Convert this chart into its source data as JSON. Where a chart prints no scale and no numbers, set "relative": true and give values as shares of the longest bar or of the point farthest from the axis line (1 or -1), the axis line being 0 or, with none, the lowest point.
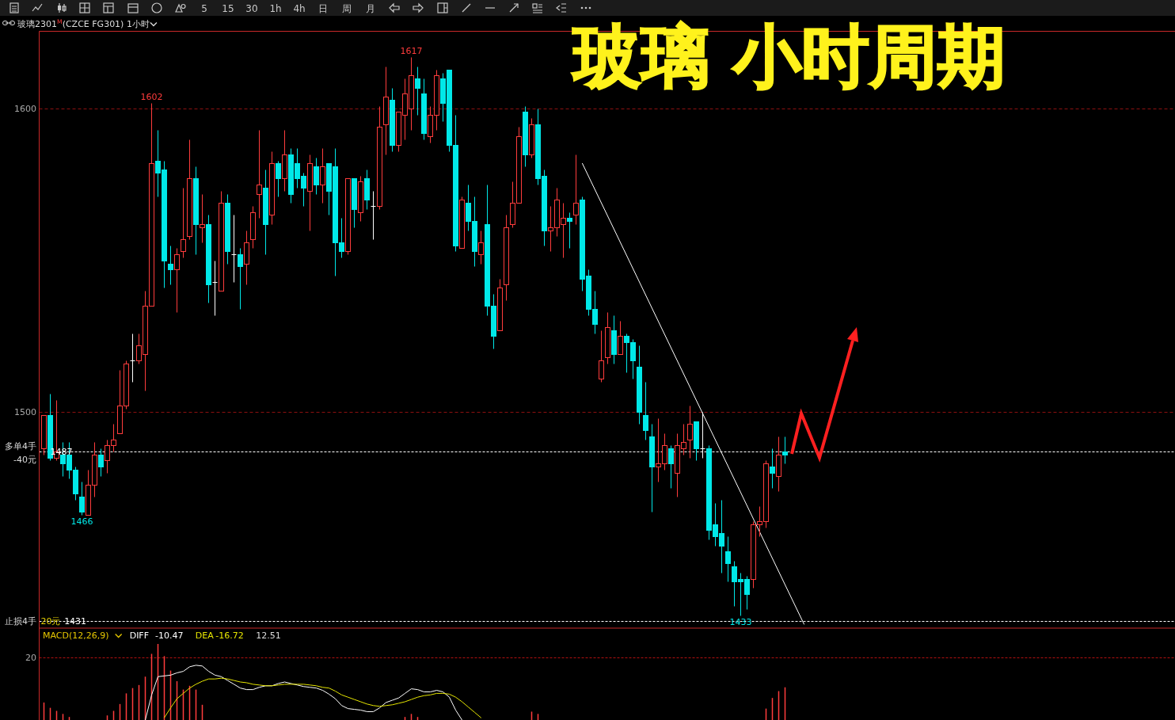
{
  "chart_data": [
    {
      "type": "other",
      "annotations": [
        "5",
        "15",
        "30",
        "1h",
        "4h",
        "日",
        "周",
        "月"
      ]
    },
    {
      "type": "candlestick",
      "title": "玻璃 小时周期",
      "subtitle": "玻璃2301$^{M}$(CZCE FG301) 1小时",
      "categories": [
        null,
        null,
        null,
        null,
        null,
        null,
        null,
        null,
        null,
        null,
        null,
        null,
        null,
        null,
        null,
        null,
        null,
        null,
        null,
        null,
        null,
        null,
        null,
        null,
        null,
        null,
        null,
        null,
        null,
        null,
        null,
        null,
        null,
        null,
        null,
        null,
        null,
        null,
        null,
        null,
        null,
        null,
        null,
        null,
        null,
        null,
        null,
        null,
        null,
        null,
        null,
        null,
        null,
        null,
        null,
        null,
        null,
        null,
        null,
        null,
        null,
        null,
        null,
        null,
        null,
        null,
        null,
        null,
        null,
        null,
        null,
        null,
        null,
        null,
        null,
        null,
        null,
        null,
        null,
        null,
        null,
        null,
        null,
        null,
        null,
        null,
        null,
        null,
        null,
        null,
        null,
        null,
        null,
        null,
        null,
        null,
        null,
        null,
        null,
        null,
        null,
        null,
        null,
        null,
        null,
        null,
        null,
        null,
        null,
        null,
        null,
        null,
        null,
        null,
        null,
        null,
        null,
        null,
        null,
        null,
        null,
        null,
        null,
        null,
        null,
        null,
        null,
        null,
        null,
        null,
        null,
        null,
        null,
        null,
        null,
        null,
        null,
        null,
        null,
        null,
        null,
        null,
        null,
        null,
        null,
        null,
        null,
        null,
        null,
        null,
        null,
        null,
        null,
        null,
        null,
        null,
        null,
        null,
        null,
        null,
        null,
        null,
        null,
        null,
        null,
        null,
        null,
        null,
        null,
        null,
        null,
        null,
        null,
        null,
        null,
        null,
        null,
        null,
        null
      ],
      "ohlc": [
        [
          1488,
          1499,
          1486,
          1499
        ],
        [
          1499,
          1506,
          1484,
          1485
        ],
        [
          1485,
          1504,
          1484,
          1487
        ],
        [
          1486,
          1490,
          1479,
          1483
        ],
        [
          1486,
          1490,
          1478,
          1481
        ],
        [
          1481,
          1482,
          1471,
          1473
        ],
        [
          1472,
          1477,
          1466,
          1467
        ],
        [
          1466,
          1481,
          1466,
          1476
        ],
        [
          1476,
          1490,
          1472,
          1486
        ],
        [
          1486,
          1488,
          1479,
          1482
        ],
        [
          1484,
          1491,
          1480,
          1489
        ],
        [
          1489,
          1496,
          1487,
          1491
        ],
        [
          1493,
          1514,
          1493,
          1502
        ],
        [
          1502,
          1517,
          1501,
          1516
        ],
        [
          1517,
          1526,
          1510,
          1517
        ],
        [
          1517,
          1526,
          1516,
          1522
        ],
        [
          1519,
          1540,
          1507,
          1535
        ],
        [
          1535,
          1602,
          1535,
          1582
        ],
        [
          1583,
          1593,
          1571,
          1579
        ],
        [
          1580,
          1583,
          1541,
          1550
        ],
        [
          1549,
          1555,
          1542,
          1547
        ],
        [
          1547,
          1554,
          1533,
          1552
        ],
        [
          1553,
          1574,
          1551,
          1557
        ],
        [
          1558,
          1590,
          1557,
          1577
        ],
        [
          1577,
          1581,
          1552,
          1562
        ],
        [
          1561,
          1572,
          1556,
          1562
        ],
        [
          1562,
          1565,
          1536,
          1542
        ],
        [
          1543,
          1550,
          1532,
          1543
        ],
        [
          1540,
          1573,
          1540,
          1569
        ],
        [
          1569,
          1572,
          1549,
          1553
        ],
        [
          1552,
          1565,
          1543,
          1552
        ],
        [
          1552,
          1554,
          1534,
          1548
        ],
        [
          1549,
          1560,
          1542,
          1556
        ],
        [
          1557,
          1568,
          1554,
          1566
        ],
        [
          1572,
          1593,
          1564,
          1575
        ],
        [
          1574,
          1580,
          1552,
          1562
        ],
        [
          1565,
          1586,
          1562,
          1582
        ],
        [
          1582,
          1583,
          1571,
          1577
        ],
        [
          1577,
          1593,
          1573,
          1585
        ],
        [
          1585,
          1587,
          1569,
          1572
        ],
        [
          1582,
          1587,
          1574,
          1577
        ],
        [
          1578,
          1579,
          1568,
          1574
        ],
        [
          1573,
          1585,
          1560,
          1582
        ],
        [
          1581,
          1584,
          1572,
          1575
        ],
        [
          1575,
          1587,
          1569,
          1581
        ],
        [
          1582,
          1582,
          1565,
          1573
        ],
        [
          1581,
          1587,
          1545,
          1556
        ],
        [
          1556,
          1564,
          1551,
          1553
        ],
        [
          1553,
          1577,
          1552,
          1577
        ],
        [
          1577,
          1577,
          1561,
          1567
        ],
        [
          1566,
          1578,
          1563,
          1576
        ],
        [
          1577,
          1580,
          1567,
          1570
        ],
        [
          1568,
          1573,
          1557,
          1568
        ],
        [
          1568,
          1601,
          1567,
          1594
        ],
        [
          1595,
          1614,
          1585,
          1604
        ],
        [
          1603,
          1607,
          1586,
          1588
        ],
        [
          1588,
          1599,
          1586,
          1599
        ],
        [
          1598,
          1610,
          1590,
          1605
        ],
        [
          1600,
          1617,
          1593,
          1611
        ],
        [
          1610,
          1614,
          1598,
          1607
        ],
        [
          1605,
          1610,
          1590,
          1592
        ],
        [
          1591,
          1601,
          1589,
          1598
        ],
        [
          1598,
          1613,
          1593,
          1611
        ],
        [
          1610,
          1612,
          1596,
          1602
        ],
        [
          1613,
          1613,
          1586,
          1588
        ],
        [
          1588,
          1598,
          1553,
          1555
        ],
        [
          1554,
          1571,
          1554,
          1570
        ],
        [
          1569,
          1575,
          1560,
          1563
        ],
        [
          1563,
          1571,
          1548,
          1553
        ],
        [
          1552,
          1560,
          1549,
          1556
        ],
        [
          1562,
          1575,
          1532,
          1535
        ],
        [
          1535,
          1539,
          1521,
          1525
        ],
        [
          1527,
          1544,
          1527,
          1541
        ],
        [
          1542,
          1565,
          1537,
          1561
        ],
        [
          1562,
          1576,
          1561,
          1569
        ],
        [
          1569,
          1594,
          1569,
          1591
        ],
        [
          1599,
          1601,
          1581,
          1585
        ],
        [
          1585,
          1597,
          1584,
          1595
        ],
        [
          1595,
          1600,
          1575,
          1577
        ],
        [
          1578,
          1580,
          1555,
          1560
        ],
        [
          1560,
          1568,
          1553,
          1561
        ],
        [
          1561,
          1574,
          1558,
          1570
        ],
        [
          1562,
          1569,
          1551,
          1564
        ],
        [
          1564,
          1566,
          1554,
          1563
        ],
        [
          1565,
          1585,
          1562,
          1569
        ],
        [
          1570,
          1571,
          1540,
          1544
        ],
        [
          1545,
          1547,
          1532,
          1534
        ],
        [
          1534,
          1540,
          1526,
          1529
        ],
        [
          1511,
          1527,
          1510,
          1517
        ],
        [
          1518,
          1533,
          1516,
          1528
        ],
        [
          1527,
          1532,
          1516,
          1519
        ],
        [
          1519,
          1530,
          1519,
          1525
        ],
        [
          1525,
          1526,
          1513,
          1523
        ],
        [
          1523,
          1524,
          1511,
          1517
        ],
        [
          1515,
          1522,
          1496,
          1500
        ],
        [
          1499,
          1510,
          1491,
          1494
        ],
        [
          1492,
          1496,
          1467,
          1482
        ],
        [
          1482,
          1498,
          1477,
          1483
        ],
        [
          1483,
          1493,
          1481,
          1489
        ],
        [
          1488,
          1489,
          1475,
          1483
        ],
        [
          1480,
          1493,
          1472,
          1489
        ],
        [
          1488,
          1496,
          1486,
          1490
        ],
        [
          1491,
          1502,
          1485,
          1496
        ],
        [
          1497,
          1497,
          1484,
          1488
        ],
        [
          1488,
          1500,
          1485,
          1488
        ],
        [
          1488,
          1489,
          1458,
          1461
        ],
        [
          1463,
          1470,
          1456,
          1459
        ],
        [
          1460,
          1471,
          1447,
          1456
        ],
        [
          1454,
          1459,
          1444,
          1450
        ],
        [
          1449,
          1451,
          1436,
          1444
        ],
        [
          1445,
          1447,
          1433,
          1444
        ],
        [
          1445,
          1446,
          1435,
          1440
        ],
        [
          1445,
          1464,
          1442,
          1463
        ],
        [
          1463,
          1469,
          1459,
          1464
        ],
        [
          1464,
          1484,
          1462,
          1483
        ],
        [
          1482,
          1488,
          1475,
          1480
        ],
        [
          1479,
          1492,
          1474,
          1486
        ],
        [
          1487,
          1492,
          1483,
          1486
        ],
        null,
        null,
        null,
        null,
        null,
        null,
        null,
        null,
        null,
        null,
        null,
        null,
        null,
        null,
        null,
        null,
        null,
        null,
        null,
        null,
        null,
        null,
        null,
        null,
        null,
        null,
        null,
        null,
        null,
        null,
        null,
        null,
        null,
        null,
        null,
        null,
        null,
        null,
        null,
        null,
        null,
        null,
        null,
        null,
        null,
        null,
        null,
        null,
        null,
        null,
        null,
        null,
        null,
        null,
        null,
        null,
        null,
        null,
        null,
        null,
        null
      ],
      "colors": [
        "#ff3c3c",
        "#00e8e8",
        "#ff3c3c",
        "#00e8e8",
        "#00e8e8",
        "#00e8e8",
        "#00e8e8",
        "#ff3c3c",
        "#ff3c3c",
        "#00e8e8",
        "#ff3c3c",
        "#ff3c3c",
        "#ff3c3c",
        "#ff3c3c",
        "#ffffff",
        "#ff3c3c",
        "#ff3c3c",
        "#ff3c3c",
        "#00e8e8",
        "#00e8e8",
        "#00e8e8",
        "#ff3c3c",
        "#ff3c3c",
        "#ff3c3c",
        "#00e8e8",
        "#ff3c3c",
        "#00e8e8",
        "#ffffff",
        "#ff3c3c",
        "#00e8e8",
        "#ffffff",
        "#00e8e8",
        "#ff3c3c",
        "#ff3c3c",
        "#ff3c3c",
        "#00e8e8",
        "#ff3c3c",
        "#00e8e8",
        "#ff3c3c",
        "#00e8e8",
        "#00e8e8",
        "#00e8e8",
        "#ff3c3c",
        "#00e8e8",
        "#ff3c3c",
        "#00e8e8",
        "#00e8e8",
        "#00e8e8",
        "#ff3c3c",
        "#00e8e8",
        "#ff3c3c",
        "#00e8e8",
        "#ffffff",
        "#ff3c3c",
        "#ff3c3c",
        "#00e8e8",
        "#ff3c3c",
        "#ff3c3c",
        "#ff3c3c",
        "#00e8e8",
        "#00e8e8",
        "#ff3c3c",
        "#ff3c3c",
        "#00e8e8",
        "#00e8e8",
        "#00e8e8",
        "#ff3c3c",
        "#00e8e8",
        "#00e8e8",
        "#ff3c3c",
        "#00e8e8",
        "#00e8e8",
        "#ff3c3c",
        "#ff3c3c",
        "#ff3c3c",
        "#ff3c3c",
        "#00e8e8",
        "#ff3c3c",
        "#00e8e8",
        "#00e8e8",
        "#ff3c3c",
        "#ff3c3c",
        "#ff3c3c",
        "#00e8e8",
        "#ff3c3c",
        "#00e8e8",
        "#00e8e8",
        "#00e8e8",
        "#ff3c3c",
        "#ff3c3c",
        "#00e8e8",
        "#ff3c3c",
        "#00e8e8",
        "#00e8e8",
        "#00e8e8",
        "#00e8e8",
        "#00e8e8",
        "#ff3c3c",
        "#ff3c3c",
        "#00e8e8",
        "#ff3c3c",
        "#ff3c3c",
        "#ff3c3c",
        "#00e8e8",
        "#ffffff",
        "#00e8e8",
        "#00e8e8",
        "#00e8e8",
        "#00e8e8",
        "#00e8e8",
        "#00e8e8",
        "#00e8e8",
        "#ff3c3c",
        "#ff3c3c",
        "#ff3c3c",
        "#00e8e8",
        "#ff3c3c",
        "#00e8e8",
        null,
        null,
        null,
        null,
        null,
        null,
        null,
        null,
        null,
        null,
        null,
        null,
        null,
        null,
        null,
        null,
        null,
        null,
        null,
        null,
        null,
        null,
        null,
        null,
        null,
        null,
        null,
        null,
        null,
        null,
        null,
        null,
        null,
        null,
        null,
        null,
        null,
        null,
        null,
        null,
        null,
        null,
        null,
        null,
        null,
        null,
        null,
        null,
        null,
        null,
        null,
        null,
        null,
        null,
        null,
        null,
        null,
        null,
        null,
        null,
        null
      ],
      "series": [
        {
          "type": "line",
          "color": "#ffffff",
          "values": [
            null,
            null,
            null,
            null,
            null,
            null,
            null,
            null,
            null,
            null,
            null,
            null,
            null,
            null,
            null,
            null,
            null,
            null,
            null,
            null,
            null,
            null,
            null,
            null,
            null,
            null,
            null,
            null,
            null,
            null,
            null,
            null,
            null,
            null,
            null,
            null,
            null,
            null,
            null,
            null,
            null,
            null,
            null,
            null,
            null,
            null,
            null,
            null,
            null,
            null,
            null,
            null,
            null,
            null,
            null,
            null,
            null,
            null,
            null,
            null,
            null,
            null,
            null,
            null,
            null,
            null,
            null,
            null,
            null,
            null,
            null,
            null,
            null,
            null,
            null,
            null,
            null,
            null,
            null,
            null,
            null,
            null,
            null,
            null,
            null,
            1582,
            null,
            null,
            null,
            null,
            null,
            null,
            null,
            null,
            null,
            null,
            null,
            null,
            null,
            null,
            null,
            null,
            null,
            null,
            null,
            null,
            null,
            null,
            null,
            null,
            null,
            null,
            null,
            null,
            null,
            null,
            null,
            null,
            null,
            null,
            1430,
            null,
            null,
            null,
            null,
            null,
            null,
            null,
            null,
            null,
            null,
            null,
            null,
            null,
            null,
            null,
            null,
            null,
            null,
            null,
            null,
            null,
            null,
            null,
            null,
            null,
            null,
            null,
            null,
            null,
            null,
            null,
            null,
            null,
            null,
            null,
            null,
            null,
            null,
            null,
            null,
            null,
            null,
            null,
            null,
            null,
            null,
            null,
            null,
            null,
            null,
            null,
            null,
            null,
            null,
            null,
            null,
            null,
            null
          ]
        }
      ],
      "ylim": [
        1428.7,
        1625.6
      ],
      "yticks": [
        1500,
        1600
      ],
      "grid": "y",
      "tick_labels": "y",
      "ref_lines": [
        {
          "axis": "y",
          "value": 1487,
          "label": "1487",
          "color": "#ffffff",
          "line_style": "dashed"
        },
        {
          "axis": "y",
          "value": 1431,
          "label": "1431",
          "color": "#ffffff",
          "line_style": "dashed"
        }
      ],
      "annotations": [
        "多单4手",
        "-40元",
        "止损4手",
        "20元",
        {
          "text": "1602",
          "y": 1602
        },
        {
          "text": "1617",
          "y": 1617
        },
        {
          "text": "1466",
          "y": 1466
        },
        {
          "text": "1433",
          "y": 1433
        }
      ]
    },
    {
      "type": "line",
      "relative": true,
      "title": "MACD(12,26,9)",
      "categories": [
        null,
        null,
        null,
        null,
        null,
        null,
        null,
        null,
        null,
        null,
        null,
        null,
        null,
        null,
        null,
        null,
        null,
        null,
        null,
        null,
        null,
        null,
        null,
        null,
        null,
        null,
        null,
        null,
        null,
        null,
        null,
        null,
        null,
        null,
        null,
        null,
        null,
        null,
        null,
        null,
        null,
        null,
        null,
        null,
        null,
        null,
        null,
        null,
        null,
        null,
        null,
        null,
        null,
        null,
        null,
        null,
        null,
        null,
        null,
        null,
        null,
        null,
        null,
        null,
        null,
        null,
        null,
        null,
        null,
        null,
        null,
        null,
        null,
        null,
        null,
        null,
        null,
        null,
        null,
        null,
        null,
        null,
        null,
        null,
        null,
        null,
        null,
        null,
        null,
        null,
        null,
        null,
        null,
        null,
        null,
        null,
        null,
        null,
        null,
        null,
        null,
        null,
        null,
        null,
        null,
        null,
        null,
        null,
        null,
        null,
        null,
        null,
        null,
        null,
        null,
        null,
        null,
        null,
        null,
        null,
        null,
        null,
        null,
        null,
        null,
        null,
        null,
        null,
        null,
        null,
        null,
        null,
        null,
        null,
        null,
        null,
        null,
        null,
        null,
        null,
        null,
        null,
        null,
        null,
        null,
        null,
        null,
        null,
        null,
        null,
        null,
        null,
        null,
        null,
        null,
        null,
        null,
        null,
        null,
        null,
        null,
        null,
        null,
        null,
        null,
        null,
        null,
        null,
        null,
        null,
        null,
        null,
        null,
        null,
        null,
        null,
        null,
        null,
        null
      ],
      "series": [
        {
          "name": "DIFF",
          "color": "#ffffff",
          "values": [
            null,
            null,
            null,
            null,
            null,
            null,
            null,
            null,
            null,
            null,
            null,
            null,
            null,
            null,
            null,
            null,
            0,
            0.33,
            0.57,
            0.58,
            0.59,
            0.62,
            0.64,
            0.7,
            0.72,
            0.71,
            0.64,
            0.59,
            0.57,
            0.52,
            0.47,
            0.42,
            0.4,
            0.4,
            0.43,
            0.45,
            0.45,
            0.48,
            0.5,
            0.48,
            0.46,
            0.44,
            0.43,
            0.42,
            0.39,
            0.34,
            0.28,
            0.19,
            0.15,
            0.14,
            0.13,
            0.11,
            0.11,
            0.16,
            0.23,
            0.26,
            0.29,
            0.35,
            0.41,
            0.4,
            0.37,
            0.37,
            0.39,
            0.37,
            0.3,
            0.13,
            0,
            null,
            null,
            null,
            null,
            null,
            null,
            null,
            null,
            null,
            null,
            null,
            null,
            null,
            null,
            null,
            null,
            null,
            null,
            null,
            null,
            null,
            null,
            null,
            null,
            null,
            null,
            null,
            null,
            null,
            null,
            null,
            null,
            null,
            null,
            null,
            null,
            null,
            null,
            null,
            null,
            null,
            null,
            null,
            null,
            null,
            null,
            null,
            null,
            null,
            null,
            null,
            null,
            null,
            null,
            null,
            null,
            null,
            null,
            null,
            null,
            null,
            null,
            null,
            null,
            null,
            null,
            null,
            null,
            null,
            null,
            null,
            null,
            null,
            null,
            null,
            null,
            null,
            null,
            null,
            null,
            null,
            null,
            null,
            null,
            null,
            null,
            null,
            null,
            null,
            null,
            null,
            null,
            null,
            null,
            null,
            null,
            null,
            null,
            null,
            null,
            null,
            null,
            null,
            null,
            null,
            null,
            null,
            null,
            null,
            null,
            null,
            null
          ]
        },
        {
          "name": "DEA",
          "color": "#e6e600",
          "values": [
            null,
            null,
            null,
            null,
            null,
            null,
            null,
            null,
            null,
            null,
            null,
            null,
            null,
            null,
            null,
            null,
            null,
            null,
            null,
            0.03,
            0.16,
            0.28,
            0.35,
            0.42,
            0.47,
            0.51,
            0.54,
            0.54,
            0.55,
            0.54,
            0.52,
            0.5,
            0.49,
            0.47,
            0.46,
            0.45,
            0.45,
            0.46,
            0.47,
            0.47,
            0.47,
            0.47,
            0.46,
            0.45,
            0.43,
            0.42,
            0.38,
            0.33,
            0.3,
            0.27,
            0.24,
            0.21,
            0.19,
            0.18,
            0.19,
            0.2,
            0.22,
            0.24,
            0.27,
            0.3,
            0.32,
            0.33,
            0.35,
            0.35,
            0.34,
            0.3,
            0.24,
            0.17,
            0.1,
            0.03,
            null,
            null,
            null,
            null,
            null,
            null,
            null,
            null,
            null,
            null,
            null,
            null,
            null,
            null,
            null,
            null,
            null,
            null,
            null,
            null,
            null,
            null,
            null,
            null,
            null,
            null,
            null,
            null,
            null,
            null,
            null,
            null,
            null,
            null,
            null,
            null,
            null,
            null,
            null,
            null,
            null,
            null,
            null,
            null,
            null,
            null,
            null,
            null,
            null,
            null,
            null,
            null,
            null,
            null,
            null,
            null,
            null,
            null,
            null,
            null,
            null,
            null,
            null,
            null,
            null,
            null,
            null,
            null,
            null,
            null,
            null,
            null,
            null,
            null,
            null,
            null,
            null,
            null,
            null,
            null,
            null,
            null,
            null,
            null,
            null,
            null,
            null,
            null,
            null,
            null,
            null,
            null,
            null,
            null,
            null,
            null,
            null,
            null,
            null,
            null,
            null,
            null,
            null,
            null,
            null,
            null,
            null,
            null,
            null
          ]
        },
        {
          "type": "bar",
          "color": "#ff3c3c",
          "values": [
            0.23,
            0.16,
            0.12,
            0.08,
            0.04,
            null,
            null,
            null,
            null,
            null,
            0.06,
            0.12,
            0.21,
            0.35,
            0.42,
            0.46,
            0.57,
            0.87,
            1,
            0.84,
            0.65,
            0.51,
            0.4,
            0.45,
            0.4,
            0.2,
            null,
            null,
            null,
            null,
            null,
            null,
            null,
            null,
            null,
            null,
            null,
            null,
            null,
            null,
            null,
            null,
            null,
            null,
            null,
            null,
            null,
            null,
            null,
            null,
            null,
            null,
            null,
            null,
            null,
            null,
            null,
            0.04,
            0.08,
            0.04,
            null,
            null,
            null,
            null,
            null,
            null,
            null,
            null,
            null,
            null,
            null,
            null,
            null,
            null,
            null,
            null,
            null,
            0.11,
            0.08,
            null,
            null,
            null,
            null,
            null,
            null,
            null,
            null,
            null,
            null,
            null,
            null,
            null,
            null,
            null,
            null,
            null,
            null,
            null,
            null,
            null,
            null,
            null,
            null,
            null,
            null,
            null,
            null,
            null,
            null,
            null,
            null,
            null,
            null,
            null,
            0.15,
            0.29,
            0.38,
            0.43,
            null,
            null,
            null,
            null,
            null,
            null,
            null,
            null,
            null,
            null,
            null,
            null,
            null,
            null,
            null,
            null,
            null,
            null,
            null,
            null,
            null,
            null,
            null,
            null,
            null,
            null,
            null,
            null,
            null,
            null,
            null,
            null,
            null,
            null,
            null,
            null,
            null,
            null,
            null,
            null,
            null,
            null,
            null,
            null,
            null,
            null,
            null,
            null,
            null,
            null,
            null,
            null,
            null,
            null,
            null,
            null,
            null,
            null,
            null,
            null,
            null
          ]
        }
      ],
      "legend": "top left",
      "ref_lines": [
        {
          "axis": "y",
          "value": 0.82,
          "color": "#b01010",
          "line_style": "dashed"
        }
      ],
      "annotations": [
        "-10.47",
        "-16.72",
        "12.51",
        "20"
      ]
    }
  ]
}
